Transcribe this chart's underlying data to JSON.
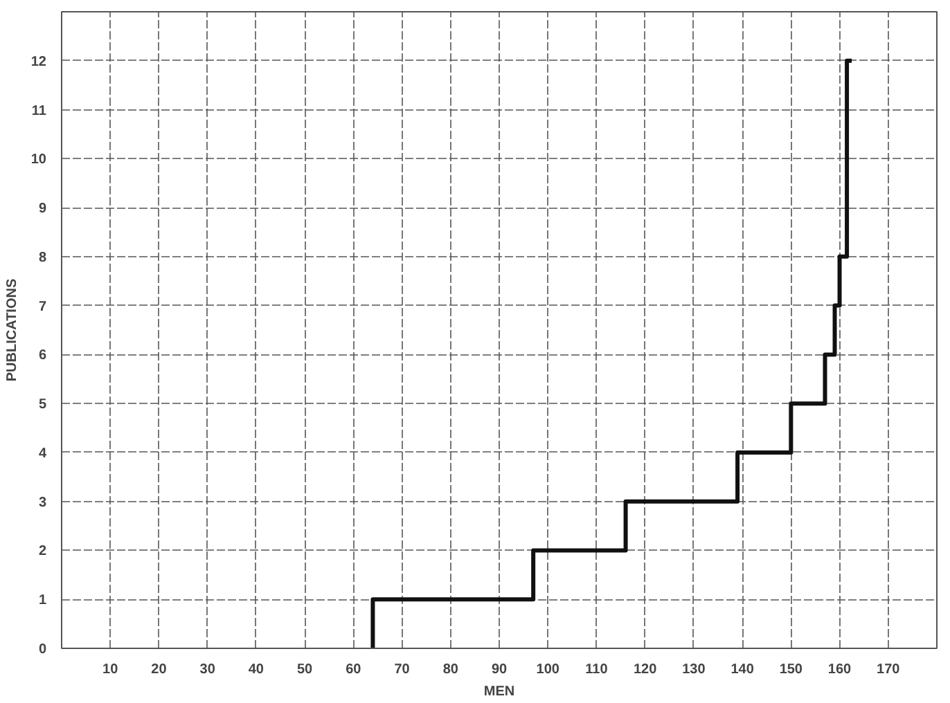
{
  "chart_data": {
    "type": "step",
    "xlabel": "MEN",
    "ylabel": "PUBLICATIONS",
    "x": [
      64,
      64,
      97,
      116,
      139,
      150,
      157,
      159,
      160,
      161.5,
      162.5
    ],
    "values": [
      0,
      1,
      2,
      3,
      4,
      5,
      6,
      7,
      8,
      12,
      12
    ],
    "color": "#111111",
    "xlim": [
      0,
      180
    ],
    "ylim": [
      0,
      13
    ],
    "xticks": [
      10,
      20,
      30,
      40,
      50,
      60,
      70,
      80,
      90,
      100,
      110,
      120,
      130,
      140,
      150,
      160,
      170
    ],
    "yticks": [
      0,
      1,
      2,
      3,
      4,
      5,
      6,
      7,
      8,
      9,
      10,
      11,
      12
    ],
    "grid": true
  }
}
